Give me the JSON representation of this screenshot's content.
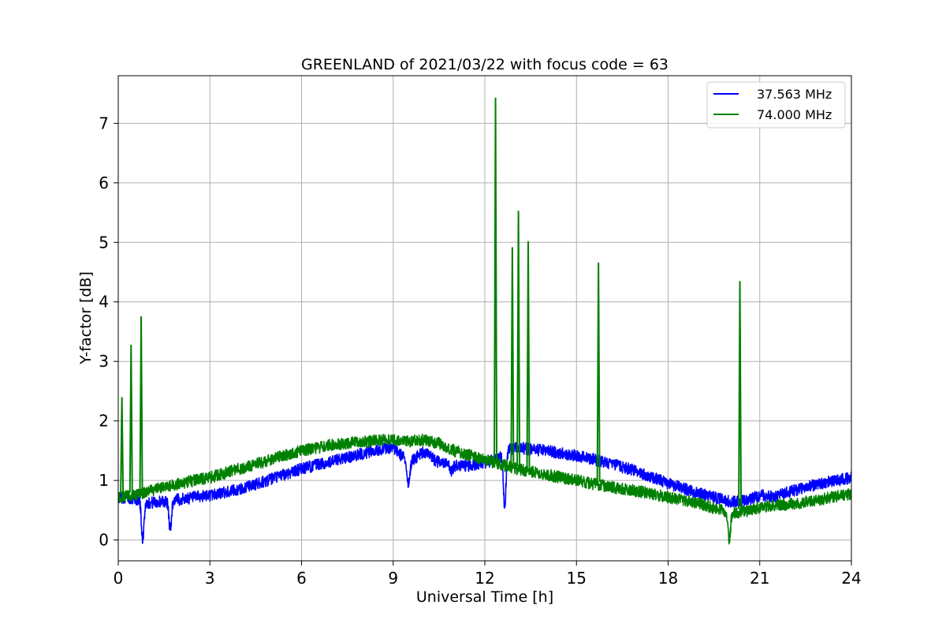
{
  "chart_data": {
    "type": "line",
    "title": "GREENLAND of 2021/03/22 with focus code = 63",
    "xlabel": "Universal Time [h]",
    "ylabel": "Y-factor [dB]",
    "xlim": [
      0,
      24
    ],
    "ylim": [
      -0.35,
      7.8
    ],
    "xticks": [
      0,
      3,
      6,
      9,
      12,
      15,
      18,
      21,
      24
    ],
    "yticks": [
      0,
      1,
      2,
      3,
      4,
      5,
      6,
      7
    ],
    "grid": true,
    "legend_position": "top-right",
    "series": [
      {
        "name": "37.563 MHz",
        "color": "#0000ff",
        "trend": {
          "x": [
            0,
            0.5,
            1,
            2,
            3,
            4,
            5,
            6,
            7,
            8,
            8.5,
            9,
            9.5,
            10,
            10.5,
            11,
            11.5,
            12,
            12.4,
            12.8,
            13,
            14,
            15,
            16,
            17,
            18,
            19,
            20,
            20.5,
            21,
            21.5,
            22,
            23,
            24
          ],
          "y": [
            0.72,
            0.7,
            0.62,
            0.68,
            0.75,
            0.85,
            1.02,
            1.2,
            1.32,
            1.45,
            1.52,
            1.55,
            1.3,
            1.48,
            1.3,
            1.25,
            1.25,
            1.3,
            1.35,
            1.52,
            1.55,
            1.5,
            1.42,
            1.3,
            1.15,
            0.95,
            0.78,
            0.65,
            0.65,
            0.75,
            0.72,
            0.82,
            0.95,
            1.05
          ]
        },
        "dips": [
          {
            "x": 0.8,
            "y": 0.02
          },
          {
            "x": 1.7,
            "y": 0.18
          },
          {
            "x": 9.5,
            "y": 0.92
          },
          {
            "x": 10.9,
            "y": 1.15
          },
          {
            "x": 12.65,
            "y": 0.57
          }
        ],
        "noise": 0.1
      },
      {
        "name": "74.000 MHz",
        "color": "#008000",
        "trend": {
          "x": [
            0,
            0.5,
            1,
            2,
            3,
            4,
            5,
            6,
            7,
            8,
            8.5,
            9,
            9.5,
            10,
            10.5,
            11,
            12,
            13,
            14,
            15,
            16,
            17,
            18,
            19,
            20,
            20.5,
            21,
            21.5,
            22,
            23,
            24
          ],
          "y": [
            0.72,
            0.75,
            0.82,
            0.95,
            1.05,
            1.2,
            1.35,
            1.5,
            1.6,
            1.65,
            1.67,
            1.68,
            1.66,
            1.68,
            1.62,
            1.5,
            1.35,
            1.2,
            1.1,
            1.0,
            0.9,
            0.82,
            0.72,
            0.62,
            0.45,
            0.48,
            0.55,
            0.58,
            0.6,
            0.68,
            0.78
          ]
        },
        "spikes": [
          {
            "x": 0.12,
            "y": 2.4
          },
          {
            "x": 0.42,
            "y": 3.28
          },
          {
            "x": 0.75,
            "y": 3.76
          },
          {
            "x": 12.35,
            "y": 7.43
          },
          {
            "x": 12.9,
            "y": 4.92
          },
          {
            "x": 13.1,
            "y": 5.53
          },
          {
            "x": 13.42,
            "y": 5.02
          },
          {
            "x": 15.72,
            "y": 4.66
          },
          {
            "x": 20.35,
            "y": 4.35
          }
        ],
        "dips": [
          {
            "x": 20.0,
            "y": 0.0
          }
        ],
        "noise": 0.1
      }
    ]
  }
}
